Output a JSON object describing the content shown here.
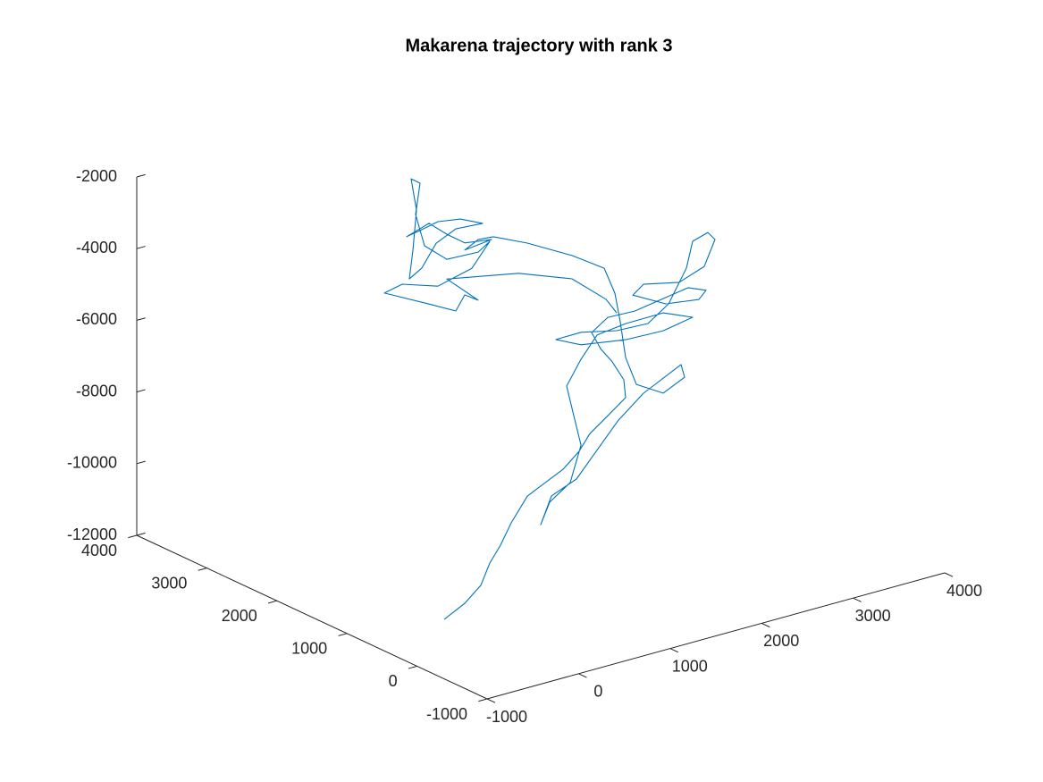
{
  "chart_data": {
    "type": "line3d",
    "title": "Makarena trajectory with rank 3",
    "color": "#0072bd",
    "xlim": [
      -1000,
      4000
    ],
    "xticks": [
      -1000,
      0,
      1000,
      2000,
      3000,
      4000
    ],
    "ylim": [
      -1000,
      4000
    ],
    "yticks": [
      -1000,
      0,
      1000,
      2000,
      3000,
      4000
    ],
    "zlim": [
      -12000,
      -2000
    ],
    "zticks": [
      -12000,
      -10000,
      -8000,
      -6000,
      -4000,
      -2000
    ],
    "x": [
      -320,
      -96,
      80,
      178,
      295,
      412,
      588,
      783,
      1361,
      1537,
      1654,
      1850,
      2045,
      2025,
      1899,
      2154,
      2057,
      2233,
      2526,
      2818,
      3111,
      3307,
      3229,
      2867,
      2506,
      2623,
      3014,
      3287,
      3404,
      3326,
      3160,
      3092,
      2897,
      2672,
      2330,
      1940,
      1666,
      1940,
      2428,
      2838,
      3160,
      2838,
      2428,
      2115,
      1940,
      1783,
      1861,
      1940,
      1822,
      1598,
      1500,
      1617,
      1891,
      2057,
      2350,
      2623,
      3033,
      3072,
      2838,
      2545,
      2428,
      2369,
      2311,
      2193,
      1842,
      1354,
      982,
      1965,
      1818,
      2111,
      1818,
      1623,
      1428,
      1184,
      1330,
      1525,
      1770,
      2014,
      1721,
      1506,
      1350,
      1213,
      1252,
      1291,
      1232,
      1330,
      1281,
      1379,
      1623,
      1965,
      2092,
      1897,
      1525,
      1135,
      940,
      1428,
      1721,
      1818,
      1965,
      1623,
      2404,
      1842,
      2213,
      2330
    ],
    "y": [
      500,
      500,
      500,
      500,
      500,
      500,
      500,
      500,
      1000,
      1000,
      1000,
      1000,
      1000,
      1000,
      1000,
      1500,
      1500,
      1500,
      1500,
      1500,
      1500,
      1500,
      1500,
      1500,
      1500,
      1500,
      1500,
      1500,
      1500,
      1500,
      1500,
      1500,
      1500,
      1500,
      1500,
      1500,
      1500,
      1500,
      1500,
      1500,
      1500,
      1500,
      1500,
      1500,
      1500,
      1500,
      1500,
      1500,
      1500,
      1500,
      1500,
      1500,
      1500,
      1500,
      1500,
      1500,
      1500,
      1500,
      1500,
      1500,
      1500,
      1500,
      1500,
      1500,
      1500,
      1500,
      1500,
      3000,
      3000,
      3000,
      3000,
      3000,
      3000,
      3000,
      3000,
      3000,
      3000,
      3000,
      3000,
      3000,
      3000,
      3000,
      3000,
      3000,
      3000,
      3000,
      3000,
      3000,
      3000,
      3000,
      3000,
      3000,
      3000,
      3000,
      3000,
      3000,
      3000,
      3000,
      3000,
      3000,
      3000,
      1500,
      1500,
      1500
    ],
    "z": [
      -11630,
      -11340,
      -10960,
      -10410,
      -9990,
      -9450,
      -8830,
      -8590,
      -9080,
      -8700,
      -8290,
      -7930,
      -7560,
      -7050,
      -6460,
      -6730,
      -6210,
      -5910,
      -5940,
      -5820,
      -5700,
      -5910,
      -6110,
      -5980,
      -5480,
      -5260,
      -5480,
      -5230,
      -4560,
      -4310,
      -4440,
      -5140,
      -6000,
      -6390,
      -6350,
      -6120,
      -6130,
      -6470,
      -6670,
      -6710,
      -6560,
      -6210,
      -6220,
      -6320,
      -6870,
      -7510,
      -8390,
      -9270,
      -10230,
      -10620,
      -11180,
      -10460,
      -10180,
      -9700,
      -8860,
      -8300,
      -7790,
      -8170,
      -8450,
      -8000,
      -7170,
      -6130,
      -5290,
      -4510,
      -3910,
      -3220,
      -2780,
      -4920,
      -5110,
      -5020,
      -4910,
      -4530,
      -4090,
      -4290,
      -4220,
      -4110,
      -4210,
      -4500,
      -4450,
      -4700,
      -5280,
      -5490,
      -4720,
      -3620,
      -2710,
      -2900,
      -3740,
      -4680,
      -5230,
      -5270,
      -5060,
      -5670,
      -5910,
      -5580,
      -5690,
      -6340,
      -6740,
      -6360,
      -6610,
      -5780,
      -6170,
      -4560,
      -5390,
      -5850
    ]
  }
}
